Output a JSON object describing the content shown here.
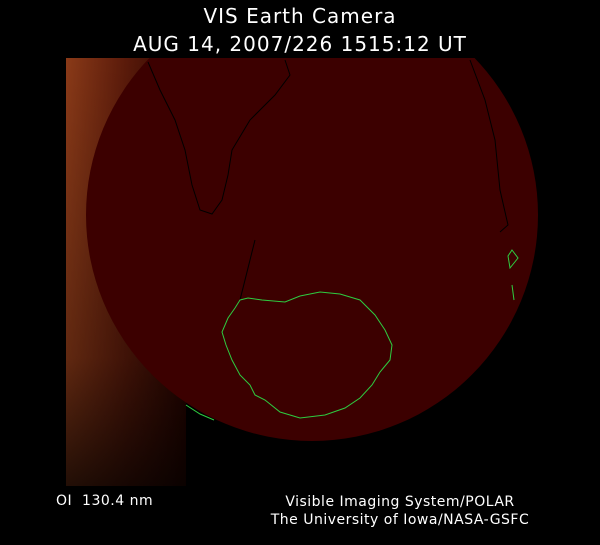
{
  "header": {
    "title": "VIS Earth Camera",
    "timestamp": "AUG 14, 2007/226 1515:12 UT"
  },
  "footer": {
    "filter": "OI  130.4 nm",
    "credit_line1": "Visible Imaging System/POLAR",
    "credit_line2": "The University of Iowa/NASA-GSFC"
  },
  "colors": {
    "background": "#000000",
    "earth_disk": "#3c0000",
    "airglow": "#a0401a",
    "coastline_land": "#000000",
    "coastline_antarctica": "#2ecc40"
  }
}
